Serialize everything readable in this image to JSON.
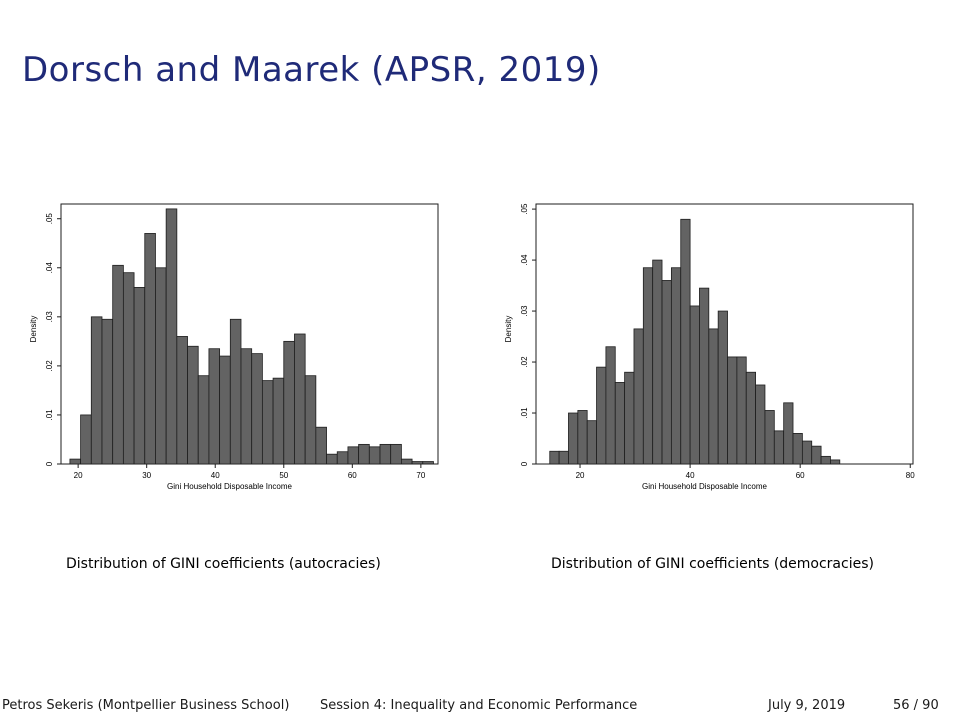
{
  "slide": {
    "title": "Dorsch and Maarek (APSR, 2019)"
  },
  "captions": {
    "left": "Distribution of GINI coefficients (autocracies)",
    "right": "Distribution of GINI coefficients (democracies)"
  },
  "footer": {
    "author": "Petros Sekeris (Montpellier Business School)",
    "session": "Session 4: Inequality and Economic Performance",
    "date": "July 9, 2019",
    "page": "56 / 90"
  },
  "colors": {
    "title": "#1f2a78",
    "bar_fill": "#636363",
    "bar_stroke": "#1e1e1e"
  },
  "chart_data": [
    {
      "type": "bar",
      "subtype": "histogram",
      "xlabel": "Gini Household Disposable Income",
      "ylabel": "Density",
      "xlim": [
        17.5,
        72.5
      ],
      "ylim": [
        0,
        0.053
      ],
      "xticks": [
        20,
        30,
        40,
        50,
        60,
        70
      ],
      "yticks": [
        0,
        0.01,
        0.02,
        0.03,
        0.04,
        0.05
      ],
      "ytick_labels": [
        "0",
        ".01",
        ".02",
        ".03",
        ".04",
        ".05"
      ],
      "bin_start": 18.8,
      "bin_width": 1.56,
      "values": [
        0.001,
        0.01,
        0.03,
        0.0295,
        0.0405,
        0.039,
        0.036,
        0.047,
        0.04,
        0.052,
        0.026,
        0.024,
        0.018,
        0.0235,
        0.022,
        0.0295,
        0.0235,
        0.0225,
        0.017,
        0.0175,
        0.025,
        0.0265,
        0.018,
        0.0075,
        0.002,
        0.0025,
        0.0035,
        0.004,
        0.0035,
        0.004,
        0.004,
        0.001,
        0.0005,
        0.0005
      ],
      "grid": false,
      "legend": "none"
    },
    {
      "type": "bar",
      "subtype": "histogram",
      "xlabel": "Gini Household Disposable Income",
      "ylabel": "Density",
      "xlim": [
        12,
        80.5
      ],
      "ylim": [
        0,
        0.051
      ],
      "xticks": [
        20,
        40,
        60,
        80
      ],
      "yticks": [
        0,
        0.01,
        0.02,
        0.03,
        0.04,
        0.05
      ],
      "ytick_labels": [
        "0",
        ".01",
        ".02",
        ".03",
        ".04",
        ".05"
      ],
      "bin_start": 14.5,
      "bin_width": 1.7,
      "values": [
        0.0025,
        0.0025,
        0.01,
        0.0105,
        0.0085,
        0.019,
        0.023,
        0.016,
        0.018,
        0.0265,
        0.0385,
        0.04,
        0.036,
        0.0385,
        0.048,
        0.031,
        0.0345,
        0.0265,
        0.03,
        0.021,
        0.021,
        0.018,
        0.0155,
        0.0105,
        0.0065,
        0.012,
        0.006,
        0.0045,
        0.0035,
        0.0015,
        0.0008
      ],
      "grid": false,
      "legend": "none"
    }
  ]
}
